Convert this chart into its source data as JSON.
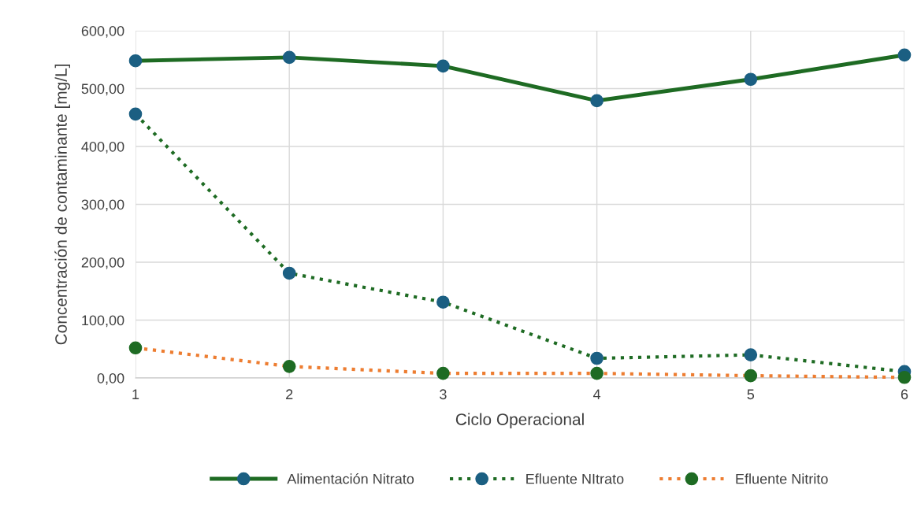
{
  "chart_data": {
    "type": "line",
    "xlabel": "Ciclo Operacional",
    "ylabel": "Concentración de contaminante [mg/L]",
    "categories": [
      "1",
      "2",
      "3",
      "4",
      "5",
      "6"
    ],
    "series": [
      {
        "name": "Alimentación Nitrato",
        "color": "#1e6b23",
        "colors": [
          "#1b5f82",
          "#1b5f82",
          "#1b5f82",
          "#1b5f82",
          "#1b5f82",
          "#1b5f82"
        ],
        "line_style": "solid",
        "values": [
          548,
          554,
          539,
          479,
          516,
          558
        ]
      },
      {
        "name": "Efluente NItrato",
        "color": "#1e6b23",
        "colors": [
          "#1b5f82",
          "#1b5f82",
          "#1b5f82",
          "#1b5f82",
          "#1b5f82",
          "#1b5f82"
        ],
        "line_style": "dotted",
        "values": [
          456,
          181,
          131,
          34,
          40,
          11
        ]
      },
      {
        "name": "Efluente Nitrito",
        "color": "#ed7d31",
        "colors": [
          "#1e6b23",
          "#1e6b23",
          "#1e6b23",
          "#1e6b23",
          "#1e6b23",
          "#1e6b23"
        ],
        "line_style": "dotted",
        "values": [
          52,
          20,
          8,
          8,
          4,
          1
        ]
      }
    ],
    "ylim": [
      0,
      600
    ],
    "yticks": [
      {
        "value": 0,
        "label": "0,00"
      },
      {
        "value": 100,
        "label": "100,00"
      },
      {
        "value": 200,
        "label": "200,00"
      },
      {
        "value": 300,
        "label": "300,00"
      },
      {
        "value": 400,
        "label": "400,00"
      },
      {
        "value": 500,
        "label": "500,00"
      },
      {
        "value": 600,
        "label": "600,00"
      }
    ],
    "grid": true,
    "legend": "bottom",
    "marker": "circle"
  }
}
